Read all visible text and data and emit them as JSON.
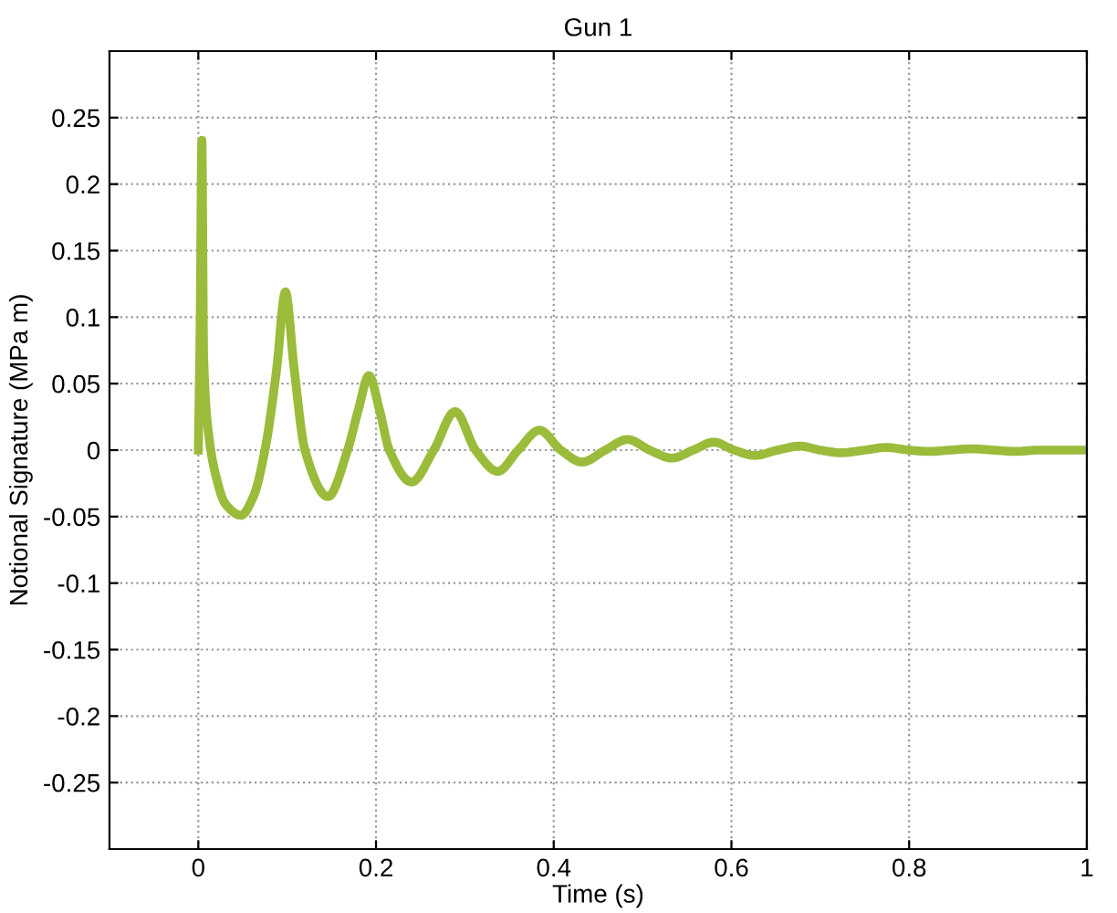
{
  "chart_data": {
    "type": "line",
    "title": "Gun 1",
    "xlabel": "Time (s)",
    "ylabel": "Notional Signature (MPa m)",
    "x": [
      0,
      0.002,
      0.004,
      0.006,
      0.012,
      0.02,
      0.03,
      0.048,
      0.062,
      0.075,
      0.088,
      0.098,
      0.108,
      0.12,
      0.146,
      0.168,
      0.18,
      0.192,
      0.204,
      0.215,
      0.24,
      0.265,
      0.289,
      0.312,
      0.337,
      0.36,
      0.384,
      0.408,
      0.432,
      0.458,
      0.483,
      0.508,
      0.533,
      0.557,
      0.58,
      0.603,
      0.626,
      0.652,
      0.677,
      0.7,
      0.723,
      0.75,
      0.774,
      0.8,
      0.822,
      0.846,
      0.87,
      0.895,
      0.92,
      0.945,
      0.97,
      1.0
    ],
    "series": [
      {
        "color": "#9bbb3b",
        "values": [
          0,
          0.09,
          0.233,
          0.07,
          0.01,
          -0.02,
          -0.04,
          -0.049,
          -0.035,
          0,
          0.06,
          0.119,
          0.06,
          0,
          -0.035,
          0,
          0.03,
          0.056,
          0.03,
          0,
          -0.024,
          0,
          0.029,
          0,
          -0.016,
          0,
          0.015,
          0,
          -0.009,
          0,
          0.008,
          0,
          -0.006,
          0,
          0.006,
          0,
          -0.004,
          0,
          0.003,
          0,
          -0.002,
          0,
          0.002,
          0,
          -0.001,
          0,
          0.001,
          0,
          -0.001,
          0,
          0,
          0
        ]
      }
    ],
    "xlim": [
      -0.1,
      1
    ],
    "xticks": [
      0,
      0.2,
      0.4,
      0.6,
      0.8,
      1
    ],
    "ylim": [
      -0.3,
      0.3
    ],
    "yticks": [
      -0.25,
      -0.2,
      -0.15,
      -0.1,
      -0.05,
      0,
      0.05,
      0.1,
      0.15,
      0.2,
      0.25
    ],
    "grid": true,
    "legend": false,
    "marker": "none",
    "line_style": "solid"
  }
}
